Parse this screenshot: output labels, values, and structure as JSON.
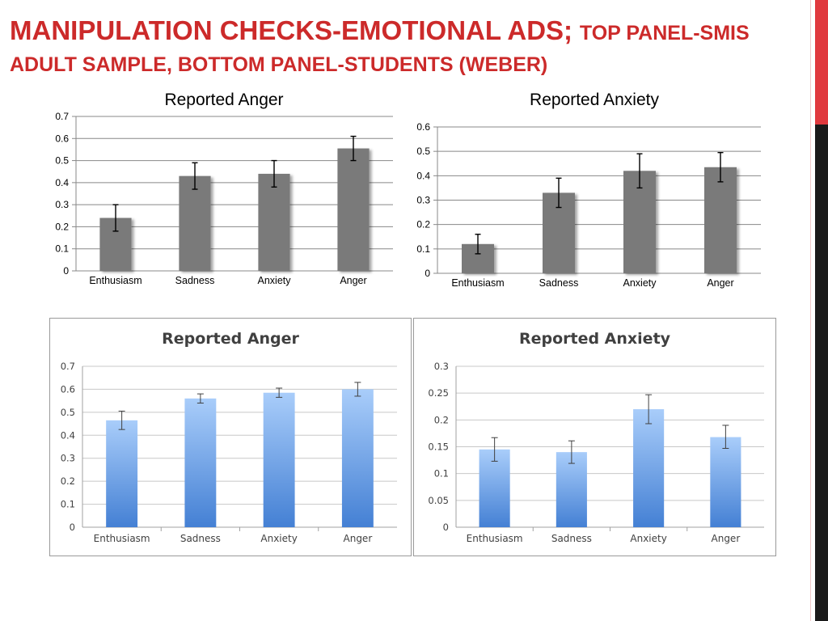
{
  "slide": {
    "title_main": "Manipulation Checks-Emotional ads;",
    "title_rest": "top panel-SMIS adult sample, bottom panel-students (Weber)"
  },
  "colors": {
    "title_red": "#cc2a2a",
    "accent_red": "#e0393e",
    "accent_dark": "#1a1a1a",
    "bar_gray": "#7a7a7a",
    "bar_blue_top": "#a9cdfa",
    "bar_blue_bottom": "#4480d4"
  },
  "chart_data": [
    {
      "type": "bar",
      "title": "Reported Anger",
      "categories": [
        "Enthusiasm",
        "Sadness",
        "Anxiety",
        "Anger"
      ],
      "values": [
        0.24,
        0.43,
        0.44,
        0.555
      ],
      "error_low": [
        0.18,
        0.37,
        0.38,
        0.5
      ],
      "error_high": [
        0.3,
        0.49,
        0.5,
        0.61
      ],
      "ylim": [
        0,
        0.7
      ],
      "yticks": [
        "0",
        "0.1",
        "0.2",
        "0.3",
        "0.4",
        "0.5",
        "0.6",
        "0.7"
      ],
      "grid": true,
      "style": "gray"
    },
    {
      "type": "bar",
      "title": "Reported Anxiety",
      "categories": [
        "Enthusiasm",
        "Sadness",
        "Anxiety",
        "Anger"
      ],
      "values": [
        0.12,
        0.33,
        0.42,
        0.435
      ],
      "error_low": [
        0.08,
        0.27,
        0.35,
        0.375
      ],
      "error_high": [
        0.16,
        0.39,
        0.49,
        0.495
      ],
      "ylim": [
        0,
        0.6
      ],
      "yticks": [
        "0",
        "0.1",
        "0.2",
        "0.3",
        "0.4",
        "0.5",
        "0.6"
      ],
      "grid": true,
      "style": "gray"
    },
    {
      "type": "bar",
      "title": "Reported Anger",
      "categories": [
        "Enthusiasm",
        "Sadness",
        "Anxiety",
        "Anger"
      ],
      "values": [
        0.465,
        0.56,
        0.585,
        0.6
      ],
      "error_low": [
        0.425,
        0.54,
        0.565,
        0.57
      ],
      "error_high": [
        0.505,
        0.58,
        0.605,
        0.63
      ],
      "ylim": [
        0,
        0.7
      ],
      "yticks": [
        "0",
        "0.1",
        "0.2",
        "0.3",
        "0.4",
        "0.5",
        "0.6",
        "0.7"
      ],
      "grid": true,
      "style": "blue"
    },
    {
      "type": "bar",
      "title": "Reported Anxiety",
      "categories": [
        "Enthusiasm",
        "Sadness",
        "Anxiety",
        "Anger"
      ],
      "values": [
        0.145,
        0.14,
        0.22,
        0.168
      ],
      "error_low": [
        0.123,
        0.119,
        0.193,
        0.147
      ],
      "error_high": [
        0.167,
        0.161,
        0.247,
        0.19
      ],
      "ylim": [
        0,
        0.3
      ],
      "yticks": [
        "0",
        "0.05",
        "0.1",
        "0.15",
        "0.2",
        "0.25",
        "0.3"
      ],
      "grid": true,
      "style": "blue"
    }
  ]
}
